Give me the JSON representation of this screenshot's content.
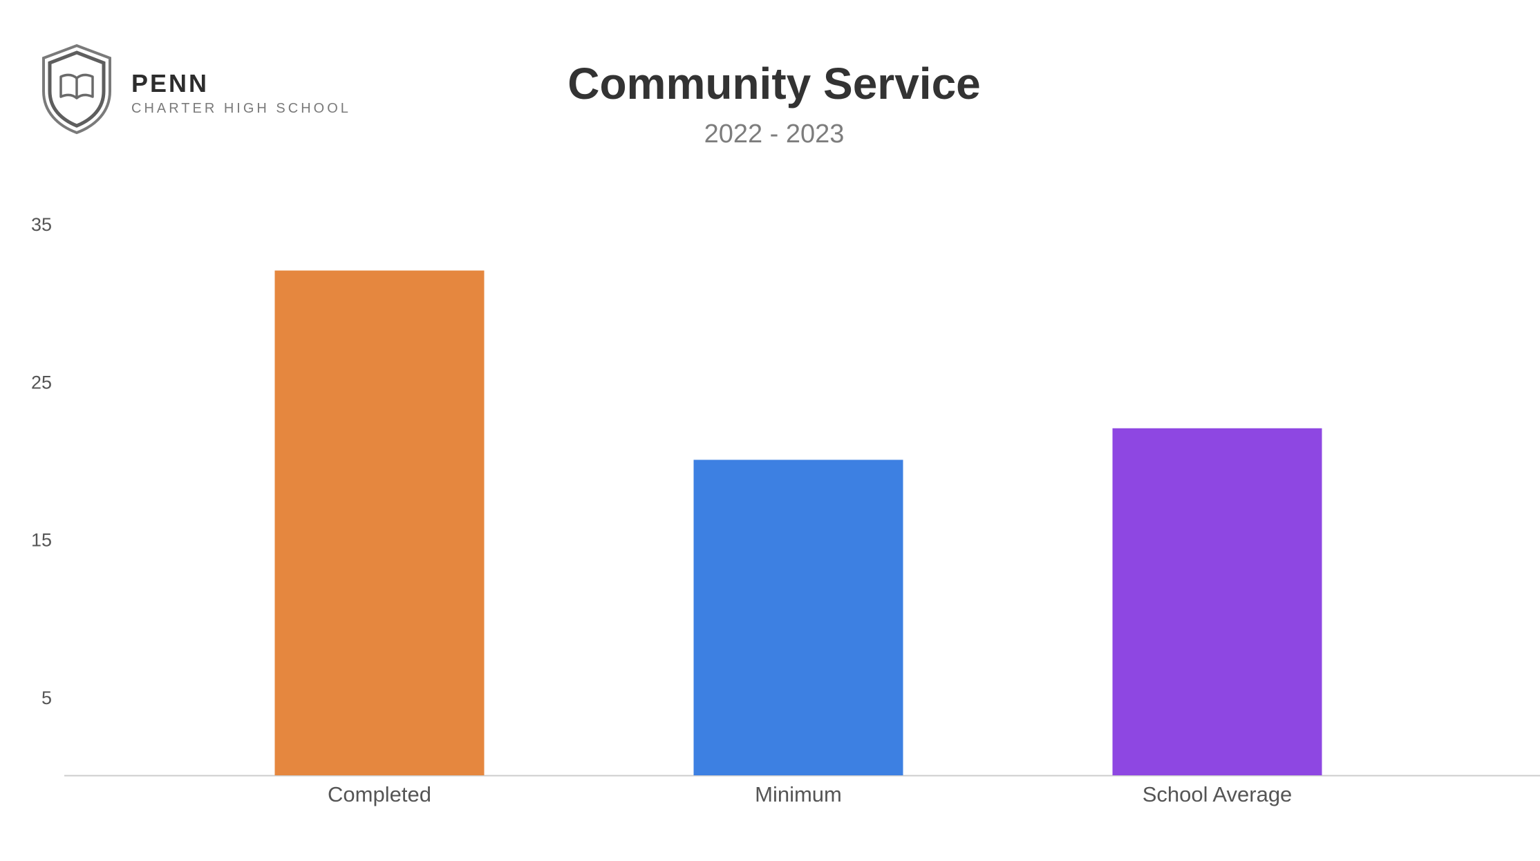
{
  "header": {
    "logo_name": "PENN",
    "logo_subtitle": "CHARTER HIGH SCHOOL",
    "logo_icon": "shield-book-icon"
  },
  "chart_data": {
    "type": "bar",
    "title": "Community Service",
    "subtitle": "2022 - 2023",
    "categories": [
      "Completed",
      "Minimum",
      "School Average"
    ],
    "values": [
      32,
      20,
      22
    ],
    "colors": [
      "#E5873F",
      "#3D80E2",
      "#8E47E2"
    ],
    "yticks": [
      5,
      15,
      25,
      35
    ],
    "ylim": [
      0,
      35
    ],
    "xlabel": "",
    "ylabel": "",
    "grid": false,
    "legend": "none"
  }
}
